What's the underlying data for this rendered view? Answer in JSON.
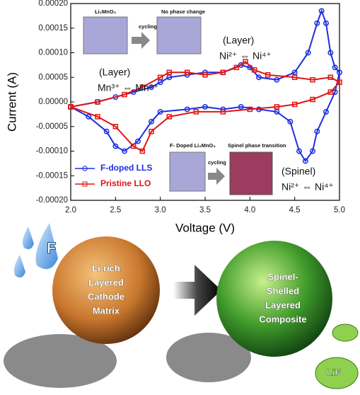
{
  "chart_data": {
    "type": "line",
    "xlabel": "Voltage (V)",
    "ylabel": "Current (A)",
    "xlim": [
      2.0,
      5.0
    ],
    "xticks": [
      {
        "value": 2,
        "label": "2.0"
      },
      {
        "value": 2.5,
        "label": "2.5"
      },
      {
        "value": 3,
        "label": "3.0"
      },
      {
        "value": 3.5,
        "label": "3.5"
      },
      {
        "value": 4,
        "label": "4.0"
      },
      {
        "value": 4.5,
        "label": "4.5"
      },
      {
        "value": 5,
        "label": "5.0"
      }
    ],
    "ylim": [
      -0.0002,
      0.0002
    ],
    "yticks": [
      {
        "value": 0.0002,
        "label": "0.00020"
      },
      {
        "value": 0.00015,
        "label": "0.00015"
      },
      {
        "value": 0.0001,
        "label": "0.00010"
      },
      {
        "value": 5e-05,
        "label": "0.00005"
      },
      {
        "value": 0,
        "label": "0.00000"
      },
      {
        "value": -5e-05,
        "label": "-0.00005"
      },
      {
        "value": -0.0001,
        "label": "-0.00010"
      },
      {
        "value": -0.00015,
        "label": "-0.00015"
      },
      {
        "value": -0.0002,
        "label": "-0.00020"
      }
    ],
    "series": [
      {
        "name": "F-doped LLS",
        "color": "#1c2fe0",
        "marker": "circle",
        "x": [
          2.0,
          2.3,
          2.5,
          2.7,
          2.9,
          3.0,
          3.1,
          3.3,
          3.5,
          3.7,
          3.9,
          4.0,
          4.1,
          4.3,
          4.5,
          4.65,
          4.75,
          4.8,
          4.85,
          4.9,
          4.95,
          5.0,
          4.95,
          4.85,
          4.75,
          4.7,
          4.62,
          4.55,
          4.45,
          4.3,
          4.1,
          3.9,
          3.7,
          3.5,
          3.3,
          3.0,
          2.9,
          2.75,
          2.6,
          2.5,
          2.4,
          2.2,
          2.0
        ],
        "values": [
          -1e-05,
          0.0,
          1e-05,
          2e-05,
          3e-05,
          4e-05,
          5e-05,
          5.5e-05,
          6e-05,
          6e-05,
          7.5e-05,
          7e-05,
          5e-05,
          4.5e-05,
          6e-05,
          0.0001,
          0.00016,
          0.000185,
          0.00016,
          0.0001,
          7e-05,
          6e-05,
          2e-05,
          -2e-05,
          -6e-05,
          -0.0001,
          -0.00012,
          -0.0001,
          -4e-05,
          -2e-05,
          -1.5e-05,
          -1e-05,
          -1.5e-05,
          -1e-05,
          -1.5e-05,
          -2e-05,
          -4e-05,
          -8e-05,
          -0.0001,
          -9e-05,
          -6e-05,
          -3e-05,
          -1e-05
        ]
      },
      {
        "name": "Pristine LLO",
        "color": "#e01515",
        "marker": "square",
        "x": [
          2.0,
          2.3,
          2.6,
          2.8,
          3.0,
          3.1,
          3.3,
          3.5,
          3.7,
          3.85,
          3.95,
          4.05,
          4.2,
          4.5,
          4.7,
          4.9,
          5.0,
          4.9,
          4.7,
          4.5,
          4.3,
          4.0,
          3.7,
          3.4,
          3.1,
          2.9,
          2.8,
          2.7,
          2.5,
          2.3,
          2.0
        ],
        "values": [
          -1e-05,
          0.0,
          1.5e-05,
          3e-05,
          5e-05,
          6e-05,
          6e-05,
          5.5e-05,
          6e-05,
          7e-05,
          8.2e-05,
          6.5e-05,
          5.5e-05,
          5e-05,
          4.5e-05,
          5e-05,
          4e-05,
          2e-05,
          5e-06,
          -5e-06,
          -1e-05,
          -1.5e-05,
          -2e-05,
          -2e-05,
          -3e-05,
          -6e-05,
          -0.0001,
          -9e-05,
          -5e-05,
          -3e-05,
          -1e-05
        ]
      }
    ],
    "legend": "lower left",
    "annotations": [
      "(Layer)",
      "Ni²⁺ ⇔ Ni⁴⁺",
      "(Layer)",
      "Mn³⁺ ⇔ Mn⁴⁺",
      "(Spinel)",
      "Ni²⁺ ⇔ Ni⁴⁺"
    ],
    "insets": [
      "Li₂MnO₃",
      "No phase change",
      "cycling",
      "F- Doped Li₂MnO₃",
      "Spinel phase transition",
      "cycling"
    ]
  },
  "illustration": {
    "dopant": "F",
    "left_sphere": [
      "Li-rich",
      "Layered",
      "Cathode",
      "Matrix"
    ],
    "right_sphere": [
      "Spinel-",
      "Shelled",
      "Layered",
      "Composite"
    ],
    "leaf": "LiF"
  }
}
